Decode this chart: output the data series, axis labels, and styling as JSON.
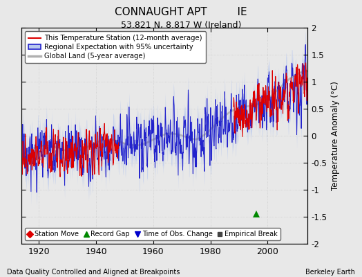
{
  "title": "CONNAUGHT APT         IE",
  "subtitle": "53.821 N, 8.817 W (Ireland)",
  "ylabel": "Temperature Anomaly (°C)",
  "xlabel_left": "Data Quality Controlled and Aligned at Breakpoints",
  "xlabel_right": "Berkeley Earth",
  "ylim": [
    -2.0,
    2.0
  ],
  "xlim": [
    1914,
    2014
  ],
  "xticks": [
    1920,
    1940,
    1960,
    1980,
    2000
  ],
  "yticks": [
    -2,
    -1.5,
    -1,
    -0.5,
    0,
    0.5,
    1,
    1.5,
    2
  ],
  "bg_color": "#e8e8e8",
  "plot_bg_color": "#e8e8e8",
  "record_gap_x": 1996,
  "record_gap_y": -1.45,
  "title_fontsize": 11,
  "subtitle_fontsize": 9,
  "legend_entries": [
    {
      "label": "This Temperature Station (12-month average)",
      "color": "#dd0000"
    },
    {
      "label": "Regional Expectation with 95% uncertainty",
      "color": "#3333bb"
    },
    {
      "label": "Global Land (5-year average)",
      "color": "#aaaaaa"
    }
  ],
  "marker_entries": [
    {
      "label": "Station Move",
      "marker": "D",
      "color": "#dd0000"
    },
    {
      "label": "Record Gap",
      "marker": "^",
      "color": "#008800"
    },
    {
      "label": "Time of Obs. Change",
      "marker": "v",
      "color": "#0000cc"
    },
    {
      "label": "Empirical Break",
      "marker": "s",
      "color": "#444444"
    }
  ]
}
